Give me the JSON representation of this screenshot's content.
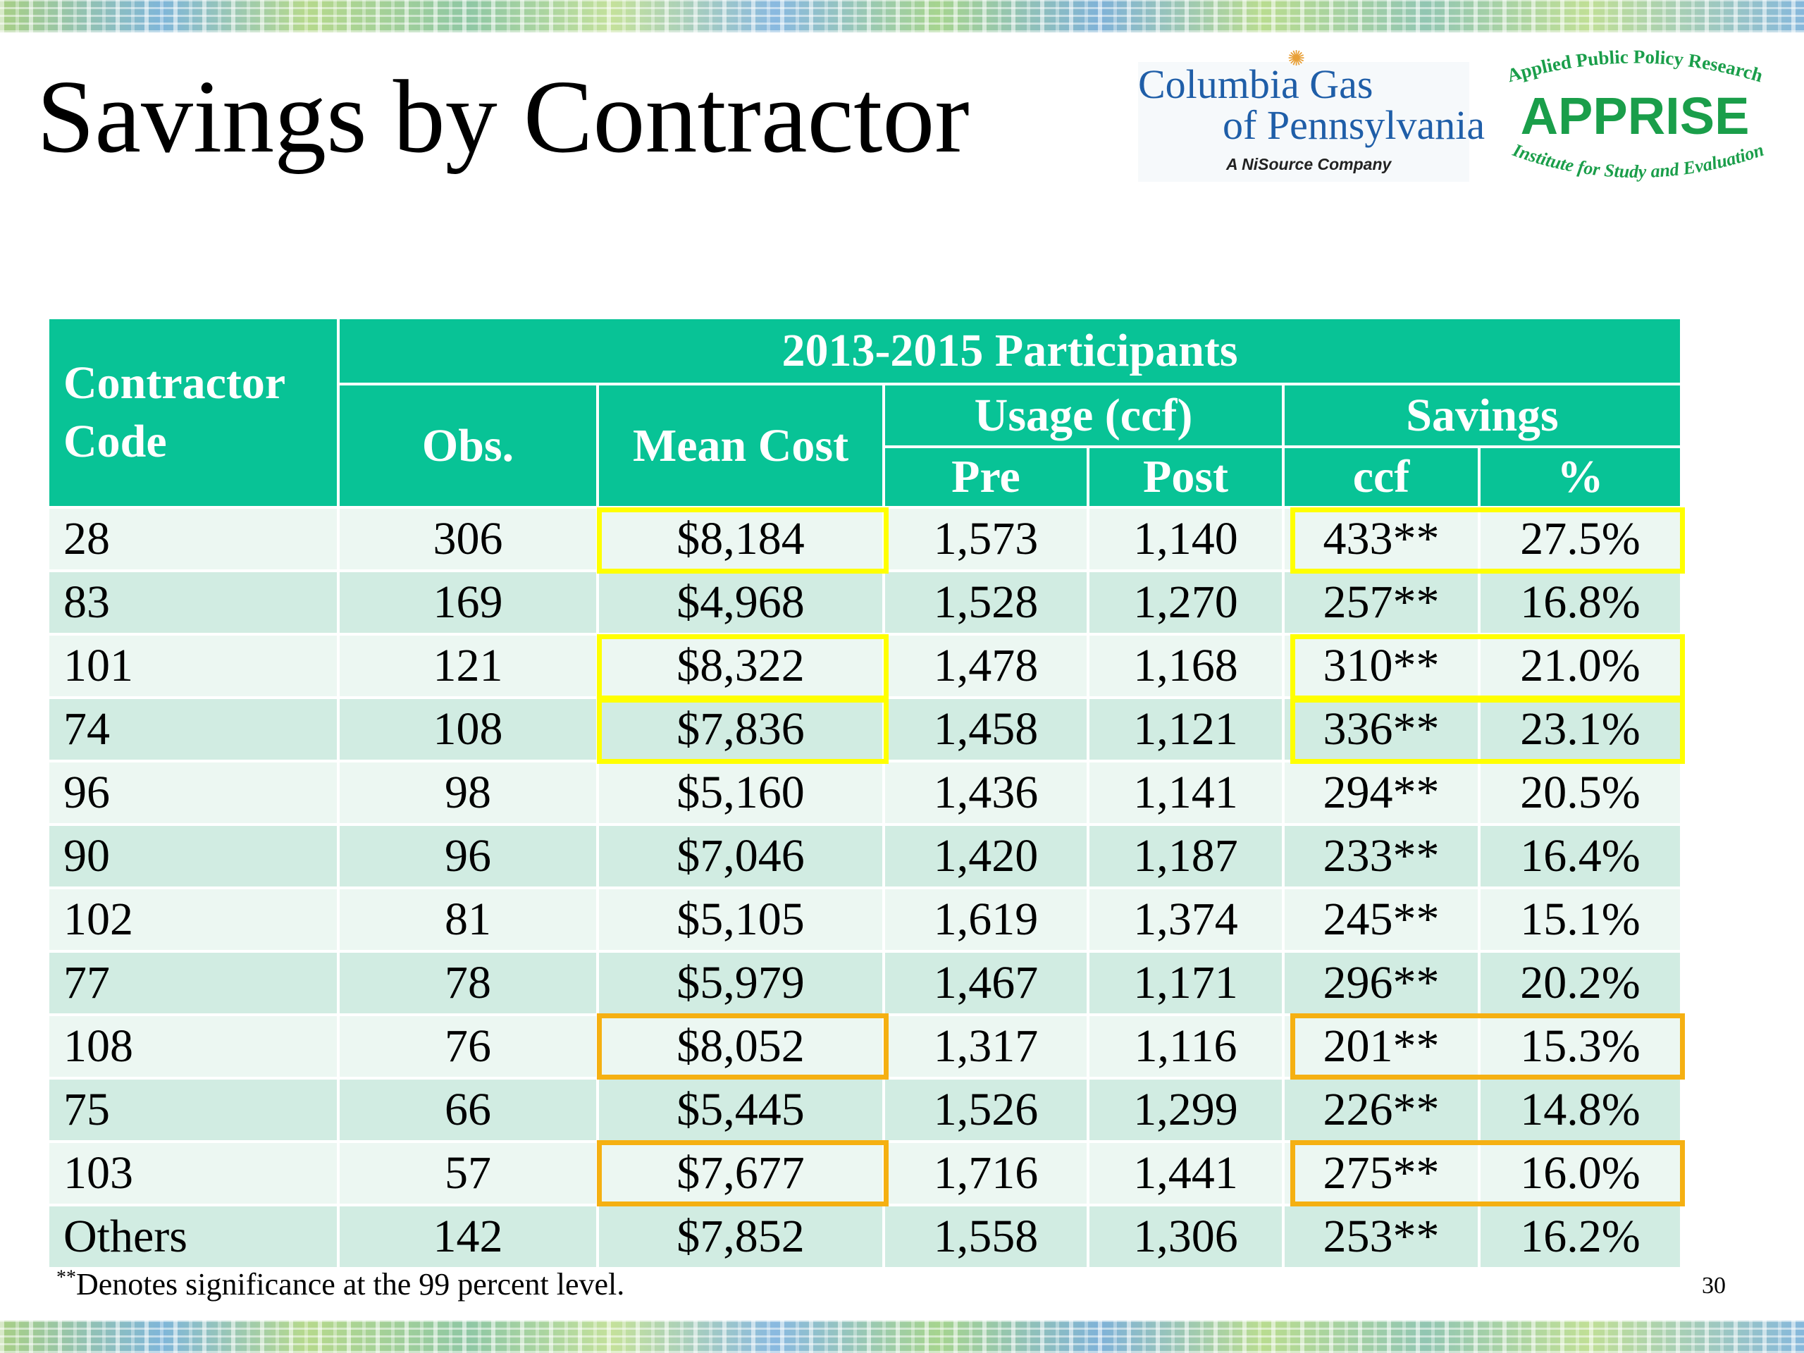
{
  "slide": {
    "title": "Savings by Contractor",
    "page_number": "30",
    "footnote_marker": "**",
    "footnote_text": "Denotes significance at the 99 percent level."
  },
  "logos": {
    "columbia_line1": "Columbia Gas",
    "columbia_line2": "of Pennsylvania",
    "columbia_tagline": "A NiSource Company",
    "apprise_top": "Applied Public Policy Research",
    "apprise_name": "APPRISE",
    "apprise_bottom": "Institute for Study and Evaluation"
  },
  "colors": {
    "header_green": "#08c396",
    "row_light": "#ecf7f2",
    "row_dark": "#d1ece2",
    "highlight_yellow": "#ffff00",
    "highlight_orange": "#f5b012",
    "logo_blue": "#1f5ea8",
    "apprise_green": "#1a9e4a"
  },
  "table": {
    "headers": {
      "contractor_code": "Contractor Code",
      "group": "2013-2015 Participants",
      "obs": "Obs.",
      "mean_cost": "Mean Cost",
      "usage": "Usage (ccf)",
      "savings": "Savings",
      "pre": "Pre",
      "post": "Post",
      "ccf": "ccf",
      "pct": "%"
    },
    "rows": [
      {
        "code": "28",
        "obs": "306",
        "cost": "$8,184",
        "pre": "1,573",
        "post": "1,140",
        "ccf": "433**",
        "pct": "27.5%",
        "highlight": "yellow"
      },
      {
        "code": "83",
        "obs": "169",
        "cost": "$4,968",
        "pre": "1,528",
        "post": "1,270",
        "ccf": "257**",
        "pct": "16.8%",
        "highlight": ""
      },
      {
        "code": "101",
        "obs": "121",
        "cost": "$8,322",
        "pre": "1,478",
        "post": "1,168",
        "ccf": "310**",
        "pct": "21.0%",
        "highlight": "yellow"
      },
      {
        "code": "74",
        "obs": "108",
        "cost": "$7,836",
        "pre": "1,458",
        "post": "1,121",
        "ccf": "336**",
        "pct": "23.1%",
        "highlight": "yellow"
      },
      {
        "code": "96",
        "obs": "98",
        "cost": "$5,160",
        "pre": "1,436",
        "post": "1,141",
        "ccf": "294**",
        "pct": "20.5%",
        "highlight": ""
      },
      {
        "code": "90",
        "obs": "96",
        "cost": "$7,046",
        "pre": "1,420",
        "post": "1,187",
        "ccf": "233**",
        "pct": "16.4%",
        "highlight": ""
      },
      {
        "code": "102",
        "obs": "81",
        "cost": "$5,105",
        "pre": "1,619",
        "post": "1,374",
        "ccf": "245**",
        "pct": "15.1%",
        "highlight": ""
      },
      {
        "code": "77",
        "obs": "78",
        "cost": "$5,979",
        "pre": "1,467",
        "post": "1,171",
        "ccf": "296**",
        "pct": "20.2%",
        "highlight": ""
      },
      {
        "code": "108",
        "obs": "76",
        "cost": "$8,052",
        "pre": "1,317",
        "post": "1,116",
        "ccf": "201**",
        "pct": "15.3%",
        "highlight": "orange"
      },
      {
        "code": "75",
        "obs": "66",
        "cost": "$5,445",
        "pre": "1,526",
        "post": "1,299",
        "ccf": "226**",
        "pct": "14.8%",
        "highlight": ""
      },
      {
        "code": "103",
        "obs": "57",
        "cost": "$7,677",
        "pre": "1,716",
        "post": "1,441",
        "ccf": "275**",
        "pct": "16.0%",
        "highlight": "orange"
      },
      {
        "code": "Others",
        "obs": "142",
        "cost": "$7,852",
        "pre": "1,558",
        "post": "1,306",
        "ccf": "253**",
        "pct": "16.2%",
        "highlight": ""
      }
    ]
  }
}
